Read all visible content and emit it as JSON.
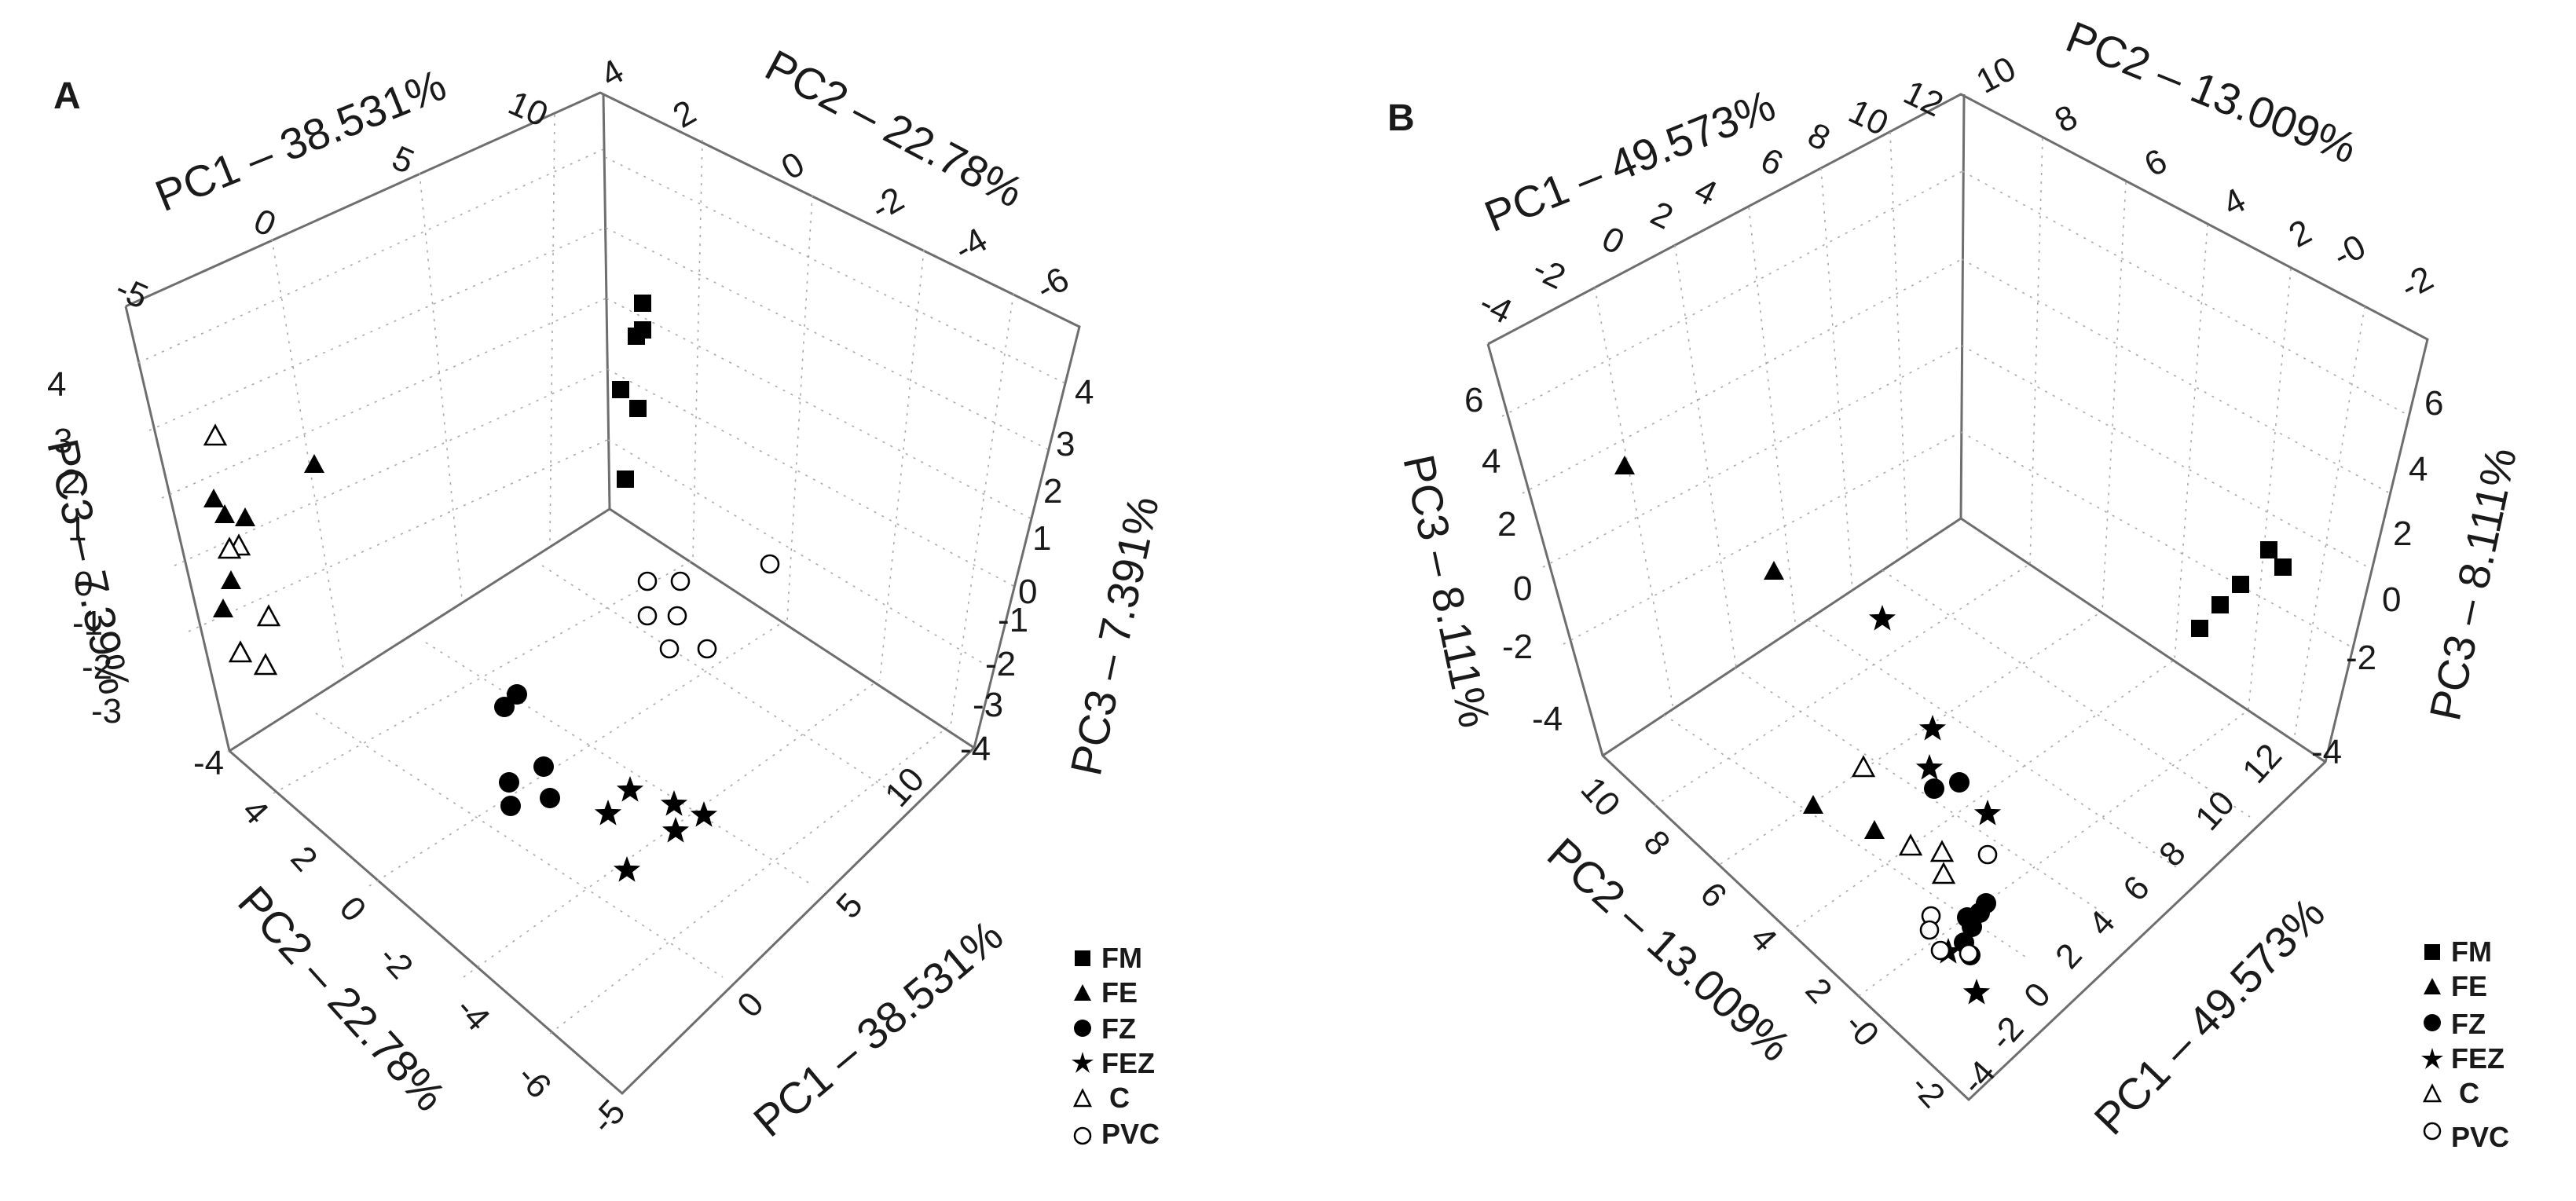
{
  "chart_data": [
    {
      "type": "scatter",
      "panel_label": "A",
      "axes": {
        "pc1": {
          "label": "PC1 – 38.531%",
          "ticks": [
            "-5",
            "0",
            "5",
            "10"
          ],
          "range": [
            -5,
            10
          ]
        },
        "pc2": {
          "label": "PC2 – 22.78%",
          "ticks": [
            "4",
            "2",
            "0",
            "-2",
            "-4",
            "-6"
          ],
          "range": [
            -6,
            4
          ]
        },
        "pc3_left": {
          "label": "PC3 – 7.39%",
          "ticks": [
            "4",
            "3",
            "2",
            "1",
            "0",
            "-1",
            "-2",
            "-3",
            "-4"
          ],
          "range": [
            -4,
            4
          ]
        },
        "pc3_right": {
          "label": "PC3 – 7.391%",
          "ticks": [
            "4",
            "3",
            "2",
            "1",
            "0",
            "-1",
            "-2",
            "-3",
            "-4"
          ],
          "range": [
            -4,
            4
          ]
        },
        "pc2_bottom": {
          "label": "PC2 – 22.78%",
          "ticks": [
            "4",
            "2",
            "0",
            "-2",
            "-4",
            "-6"
          ],
          "range": [
            -6,
            4
          ]
        },
        "pc1_bottom": {
          "label": "PC1 – 38.531%",
          "ticks": [
            "10",
            "5",
            "0",
            "-5"
          ],
          "range": [
            -5,
            10
          ]
        }
      },
      "grid": true,
      "legend_position": "bottom-right",
      "series": [
        {
          "name": "FM",
          "marker": "square",
          "projections": [
            [
              818,
              386
            ],
            [
              810,
              428
            ],
            [
              818,
              420
            ],
            [
              790,
              496
            ],
            [
              812,
              520
            ],
            [
              796,
              610
            ]
          ]
        },
        {
          "name": "FE",
          "marker": "triangle",
          "projections": [
            [
              400,
              592
            ],
            [
              272,
              636
            ],
            [
              286,
              656
            ],
            [
              312,
              660
            ],
            [
              294,
              740
            ],
            [
              284,
              776
            ]
          ]
        },
        {
          "name": "FZ",
          "marker": "circle",
          "projections": [
            [
              658,
              884
            ],
            [
              642,
              900
            ],
            [
              692,
              976
            ],
            [
              648,
              996
            ],
            [
              700,
              1016
            ],
            [
              650,
              1026
            ]
          ]
        },
        {
          "name": "FEZ",
          "marker": "star",
          "projections": [
            [
              802,
              1006
            ],
            [
              858,
              1024
            ],
            [
              896,
              1038
            ],
            [
              774,
              1036
            ],
            [
              860,
              1058
            ],
            [
              798,
              1108
            ]
          ]
        },
        {
          "name": "C",
          "marker": "triangle-open",
          "projections": [
            [
              274,
              556
            ],
            [
              304,
              696
            ],
            [
              292,
              700
            ],
            [
              342,
              786
            ],
            [
              306,
              832
            ],
            [
              338,
              848
            ]
          ]
        },
        {
          "name": "PVC",
          "marker": "circle-open",
          "projections": [
            [
              980,
              718
            ],
            [
              824,
              740
            ],
            [
              866,
              740
            ],
            [
              824,
              784
            ],
            [
              862,
              784
            ],
            [
              852,
              826
            ],
            [
              900,
              826
            ]
          ]
        }
      ]
    },
    {
      "type": "scatter",
      "panel_label": "B",
      "axes": {
        "pc1": {
          "label": "PC1 – 49.573%",
          "ticks": [
            "-4",
            "-2",
            "0",
            "2",
            "4",
            "6",
            "8",
            "10",
            "12"
          ],
          "range": [
            -4,
            12
          ]
        },
        "pc2": {
          "label": "PC2 – 13.009%",
          "ticks": [
            "10",
            "8",
            "6",
            "4",
            "2",
            "-0",
            "-2"
          ],
          "range": [
            -2,
            10
          ]
        },
        "pc3_left": {
          "label": "PC3 – 8.111%",
          "ticks": [
            "6",
            "4",
            "2",
            "0",
            "-2",
            "-4"
          ],
          "range": [
            -4,
            6
          ]
        },
        "pc3_right": {
          "label": "PC3 – 8.111%",
          "ticks": [
            "6",
            "4",
            "2",
            "0",
            "-2",
            "-4"
          ],
          "range": [
            -4,
            6
          ]
        },
        "pc2_bottom": {
          "label": "PC2 – 13.009%",
          "ticks": [
            "10",
            "8",
            "6",
            "4",
            "2",
            "-0",
            "-2"
          ],
          "range": [
            -2,
            10
          ]
        },
        "pc1_bottom": {
          "label": "PC1 – 49.573%",
          "ticks": [
            "12",
            "10",
            "8",
            "6",
            "4",
            "2",
            "0",
            "-2",
            "-4"
          ],
          "range": [
            -4,
            12
          ]
        }
      },
      "grid": true,
      "legend_position": "bottom-right",
      "series": [
        {
          "name": "FM",
          "marker": "square",
          "projections": [
            [
              2888,
              700
            ],
            [
              2906,
              722
            ],
            [
              2852,
              744
            ],
            [
              2826,
              770
            ],
            [
              2800,
              800
            ]
          ]
        },
        {
          "name": "FE",
          "marker": "triangle",
          "projections": [
            [
              2068,
              594
            ],
            [
              2258,
              728
            ],
            [
              2308,
              1026
            ],
            [
              2386,
              1058
            ]
          ]
        },
        {
          "name": "FZ",
          "marker": "circle",
          "projections": [
            [
              2494,
              996
            ],
            [
              2462,
              1004
            ],
            [
              2528,
              1150
            ],
            [
              2520,
              1162
            ],
            [
              2504,
              1168
            ],
            [
              2510,
              1180
            ],
            [
              2500,
              1200
            ],
            [
              2508,
              1216
            ]
          ]
        },
        {
          "name": "FEZ",
          "marker": "star",
          "projections": [
            [
              2396,
              788
            ],
            [
              2460,
              928
            ],
            [
              2456,
              978
            ],
            [
              2530,
              1036
            ],
            [
              2480,
              1212
            ],
            [
              2516,
              1264
            ]
          ]
        },
        {
          "name": "C",
          "marker": "triangle-open",
          "projections": [
            [
              2372,
              978
            ],
            [
              2432,
              1078
            ],
            [
              2472,
              1086
            ],
            [
              2474,
              1114
            ]
          ]
        },
        {
          "name": "PVC",
          "marker": "circle-open",
          "projections": [
            [
              2530,
              1088
            ],
            [
              2458,
              1166
            ],
            [
              2456,
              1184
            ],
            [
              2470,
              1210
            ],
            [
              2506,
              1214
            ]
          ]
        }
      ]
    }
  ],
  "legend": [
    "FM",
    "FE",
    "FZ",
    "FEZ",
    "C",
    "PVC"
  ]
}
